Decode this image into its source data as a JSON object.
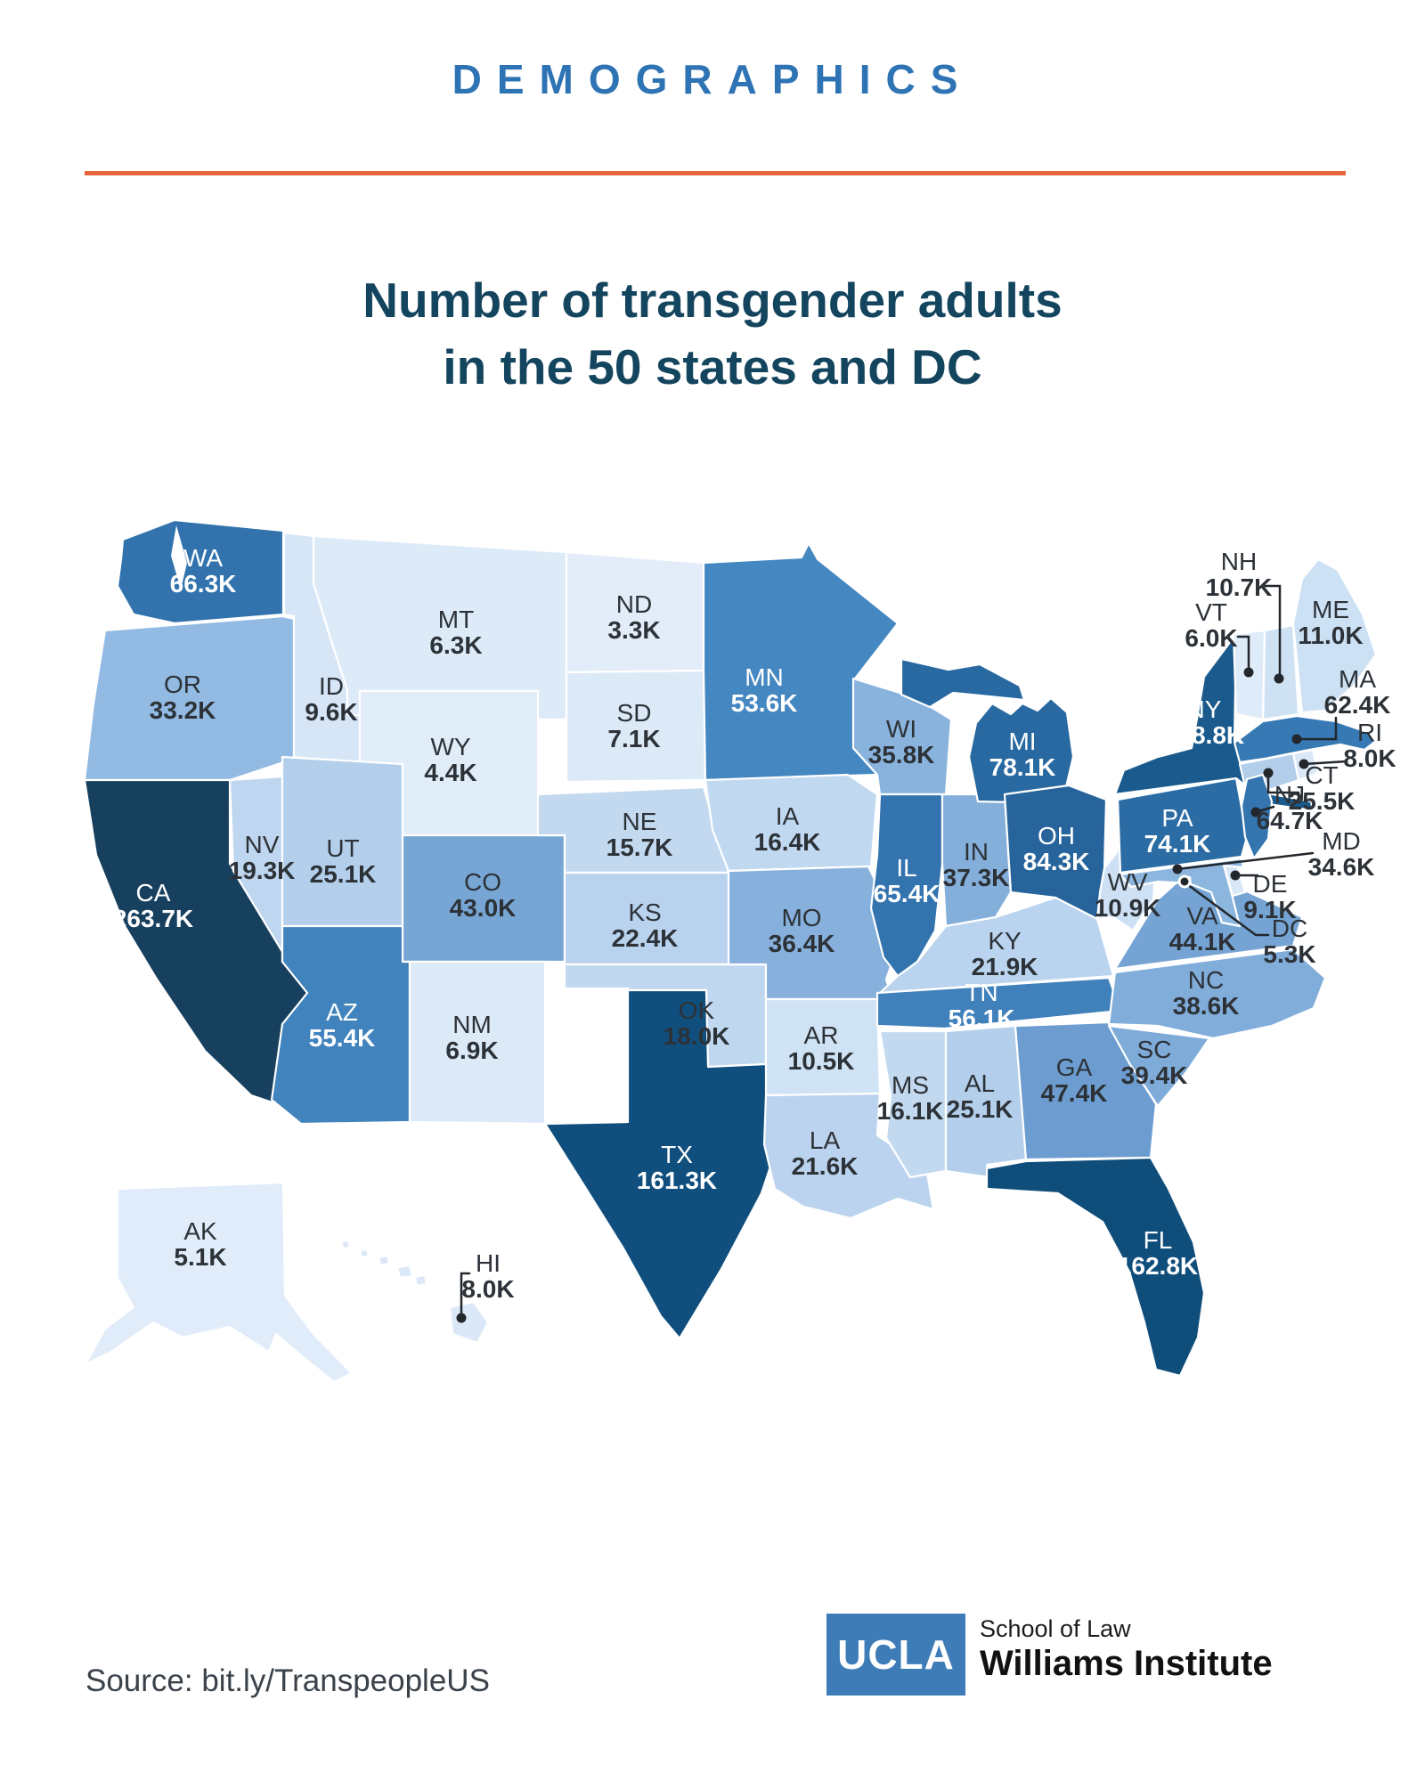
{
  "header": {
    "kicker": "DEMOGRAPHICS",
    "title_line1": "Number of transgender adults",
    "title_line2": "in the 50 states and DC"
  },
  "source": {
    "label": "Source: bit.ly/TranspeopleUS"
  },
  "logo": {
    "ucla": "UCLA",
    "school": "School of Law",
    "institute": "Williams Institute"
  },
  "colors": {
    "kicker": "#2e74b4",
    "title": "#14455e",
    "divider": "#e8653e",
    "state_border": "#ffffff",
    "callout_line": "#22272c",
    "label_dark": "#2c3237",
    "label_light": "#ffffff"
  },
  "chart_data": {
    "type": "choropleth-map",
    "region": "United States",
    "title": "Number of transgender adults in the 50 states and DC",
    "unit": "thousands of adults",
    "label_style": {
      "white_text_min": 50
    },
    "color_scale": {
      "anchors": [
        [
          0,
          "#eaf2fc"
        ],
        [
          3.3,
          "#e3edf9"
        ],
        [
          7,
          "#dceaf8"
        ],
        [
          9.6,
          "#d6e6f6"
        ],
        [
          11,
          "#cde1f4"
        ],
        [
          16,
          "#c2d9f0"
        ],
        [
          22,
          "#bad3ee"
        ],
        [
          25.5,
          "#b2ceeb"
        ],
        [
          33,
          "#93bbe2"
        ],
        [
          36,
          "#88b2dd"
        ],
        [
          39,
          "#80acd9"
        ],
        [
          44,
          "#75a4d4"
        ],
        [
          47.5,
          "#6d9dd0"
        ],
        [
          53.6,
          "#4587c0"
        ],
        [
          56.1,
          "#4081bb"
        ],
        [
          62.4,
          "#3779b4"
        ],
        [
          66.3,
          "#3273ae"
        ],
        [
          74,
          "#2b6ca5"
        ],
        [
          84.3,
          "#27649b"
        ],
        [
          148.8,
          "#1a5a8c"
        ],
        [
          162.8,
          "#0f4e7b"
        ],
        [
          263.7,
          "#17405f"
        ]
      ]
    },
    "states": [
      {
        "abbr": "WA",
        "label": "66.3K",
        "value": 66.3
      },
      {
        "abbr": "OR",
        "label": "33.2K",
        "value": 33.2
      },
      {
        "abbr": "CA",
        "label": "263.7K",
        "value": 263.7
      },
      {
        "abbr": "NV",
        "label": "19.3K",
        "value": 19.3
      },
      {
        "abbr": "ID",
        "label": "9.6K",
        "value": 9.6
      },
      {
        "abbr": "MT",
        "label": "6.3K",
        "value": 6.3
      },
      {
        "abbr": "WY",
        "label": "4.4K",
        "value": 4.4
      },
      {
        "abbr": "UT",
        "label": "25.1K",
        "value": 25.1
      },
      {
        "abbr": "CO",
        "label": "43.0K",
        "value": 43.0
      },
      {
        "abbr": "AZ",
        "label": "55.4K",
        "value": 55.4
      },
      {
        "abbr": "NM",
        "label": "6.9K",
        "value": 6.9
      },
      {
        "abbr": "ND",
        "label": "3.3K",
        "value": 3.3
      },
      {
        "abbr": "SD",
        "label": "7.1K",
        "value": 7.1
      },
      {
        "abbr": "NE",
        "label": "15.7K",
        "value": 15.7
      },
      {
        "abbr": "KS",
        "label": "22.4K",
        "value": 22.4
      },
      {
        "abbr": "OK",
        "label": "18.0K",
        "value": 18.0
      },
      {
        "abbr": "TX",
        "label": "161.3K",
        "value": 161.3
      },
      {
        "abbr": "MN",
        "label": "53.6K",
        "value": 53.6
      },
      {
        "abbr": "IA",
        "label": "16.4K",
        "value": 16.4
      },
      {
        "abbr": "MO",
        "label": "36.4K",
        "value": 36.4
      },
      {
        "abbr": "AR",
        "label": "10.5K",
        "value": 10.5
      },
      {
        "abbr": "LA",
        "label": "21.6K",
        "value": 21.6
      },
      {
        "abbr": "WI",
        "label": "35.8K",
        "value": 35.8
      },
      {
        "abbr": "IL",
        "label": "65.4K",
        "value": 65.4
      },
      {
        "abbr": "IN",
        "label": "37.3K",
        "value": 37.3
      },
      {
        "abbr": "MI",
        "label": "78.1K",
        "value": 78.1
      },
      {
        "abbr": "OH",
        "label": "84.3K",
        "value": 84.3
      },
      {
        "abbr": "KY",
        "label": "21.9K",
        "value": 21.9
      },
      {
        "abbr": "TN",
        "label": "56.1K",
        "value": 56.1
      },
      {
        "abbr": "MS",
        "label": "16.1K",
        "value": 16.1
      },
      {
        "abbr": "AL",
        "label": "25.1K",
        "value": 25.1
      },
      {
        "abbr": "GA",
        "label": "47.4K",
        "value": 47.4
      },
      {
        "abbr": "FL",
        "label": "162.8K",
        "value": 162.8
      },
      {
        "abbr": "SC",
        "label": "39.4K",
        "value": 39.4
      },
      {
        "abbr": "NC",
        "label": "38.6K",
        "value": 38.6
      },
      {
        "abbr": "VA",
        "label": "44.1K",
        "value": 44.1
      },
      {
        "abbr": "WV",
        "label": "10.9K",
        "value": 10.9
      },
      {
        "abbr": "PA",
        "label": "74.1K",
        "value": 74.1
      },
      {
        "abbr": "NY",
        "label": "148.8K",
        "value": 148.8
      },
      {
        "abbr": "ME",
        "label": "11.0K",
        "value": 11.0
      },
      {
        "abbr": "NH",
        "label": "10.7K",
        "value": 10.7
      },
      {
        "abbr": "VT",
        "label": "6.0K",
        "value": 6.0
      },
      {
        "abbr": "MA",
        "label": "62.4K",
        "value": 62.4
      },
      {
        "abbr": "RI",
        "label": "8.0K",
        "value": 8.0
      },
      {
        "abbr": "CT",
        "label": "25.5K",
        "value": 25.5
      },
      {
        "abbr": "NJ",
        "label": "64.7K",
        "value": 64.7
      },
      {
        "abbr": "DE",
        "label": "9.1K",
        "value": 9.1
      },
      {
        "abbr": "MD",
        "label": "34.6K",
        "value": 34.6
      },
      {
        "abbr": "DC",
        "label": "5.3K",
        "value": 5.3
      },
      {
        "abbr": "AK",
        "label": "5.1K",
        "value": 5.1
      },
      {
        "abbr": "HI",
        "label": "8.0K",
        "value": 8.0
      }
    ]
  }
}
